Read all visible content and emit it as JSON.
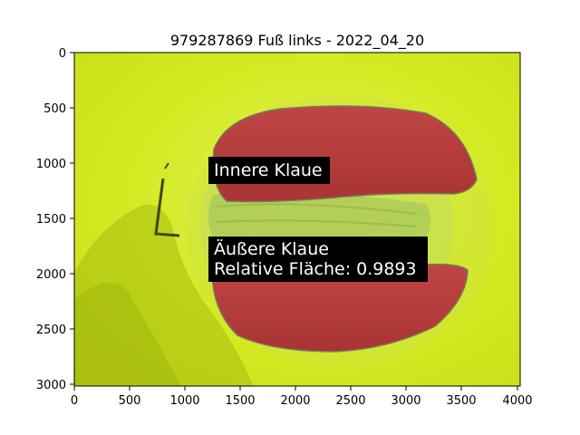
{
  "figure": {
    "title": "979287869 Fuß links - 2022_04_20"
  },
  "axes": {
    "x_ticks": [
      "0",
      "500",
      "1000",
      "1500",
      "2000",
      "2500",
      "3000",
      "3500",
      "4000"
    ],
    "y_ticks": [
      "0",
      "500",
      "1000",
      "1500",
      "2000",
      "2500",
      "3000"
    ],
    "xlim": [
      0,
      4032
    ],
    "ylim": [
      3024,
      0
    ]
  },
  "annotations": {
    "inner": "Innere Klaue",
    "outer_line1": "Äußere Klaue",
    "outer_line2": "Relative Fläche: 0.9893"
  },
  "colors": {
    "background_yellow": "#d6ee1a",
    "claw_red": "#b83c3c",
    "label_bg": "#000000"
  }
}
